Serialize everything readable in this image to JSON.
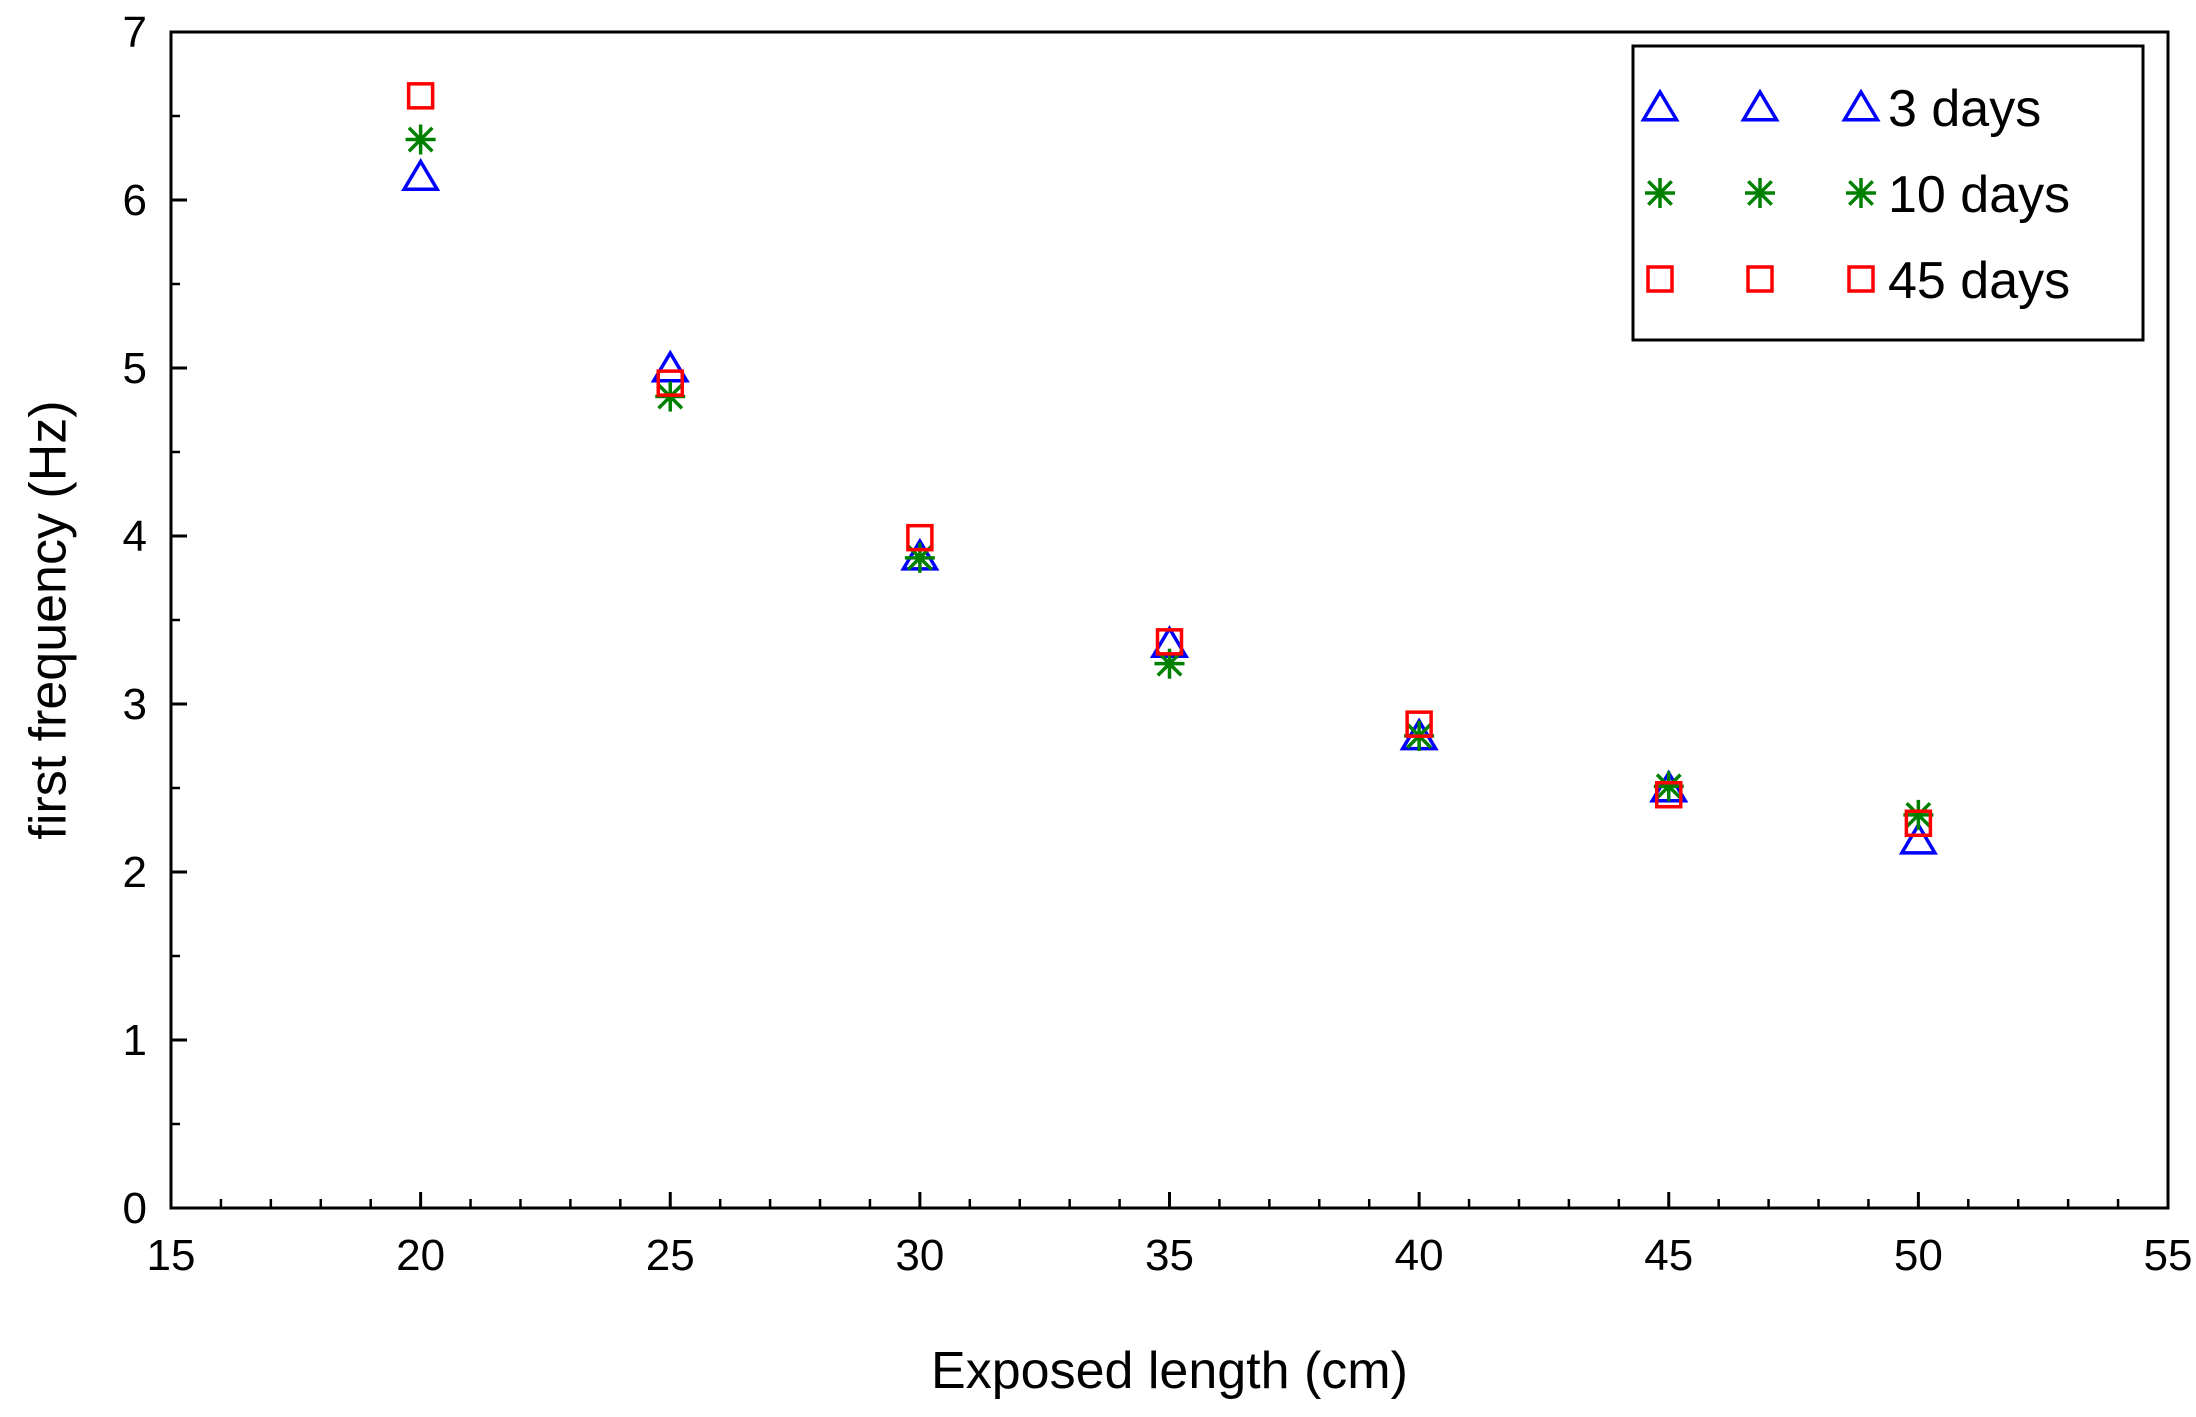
{
  "chart_data": {
    "type": "scatter",
    "title": "",
    "xlabel": "Exposed length (cm)",
    "ylabel": "first frequency (Hz)",
    "xlim": [
      15,
      55
    ],
    "ylim": [
      0,
      7
    ],
    "xticks": [
      15,
      20,
      25,
      30,
      35,
      40,
      45,
      50,
      55
    ],
    "yticks": [
      0,
      1,
      2,
      3,
      4,
      5,
      6,
      7
    ],
    "xtick_labels": [
      "15",
      "20",
      "25",
      "30",
      "35",
      "40",
      "45",
      "50",
      "55"
    ],
    "ytick_labels": [
      "0",
      "1",
      "2",
      "3",
      "4",
      "5",
      "6",
      "7"
    ],
    "x_minor_step": 1,
    "y_minor_step": 0.5,
    "grid": false,
    "legend_position": "top-right",
    "series": [
      {
        "name": "3 days",
        "label": "3 days",
        "marker": "triangle",
        "color": "#0000ff",
        "x": [
          20,
          25,
          30,
          35,
          40,
          45,
          50
        ],
        "y": [
          6.14,
          5.0,
          3.88,
          3.36,
          2.81,
          2.5,
          2.19
        ]
      },
      {
        "name": "10 days",
        "label": "10 days",
        "marker": "asterisk",
        "color": "#008000",
        "x": [
          20,
          25,
          30,
          35,
          40,
          45,
          50
        ],
        "y": [
          6.36,
          4.83,
          3.87,
          3.24,
          2.81,
          2.51,
          2.34
        ]
      },
      {
        "name": "45 days",
        "label": "45 days",
        "marker": "square",
        "color": "#ff0000",
        "x": [
          20,
          25,
          30,
          35,
          40,
          45,
          50
        ],
        "y": [
          6.62,
          4.91,
          3.99,
          3.37,
          2.88,
          2.46,
          2.29
        ]
      }
    ]
  }
}
